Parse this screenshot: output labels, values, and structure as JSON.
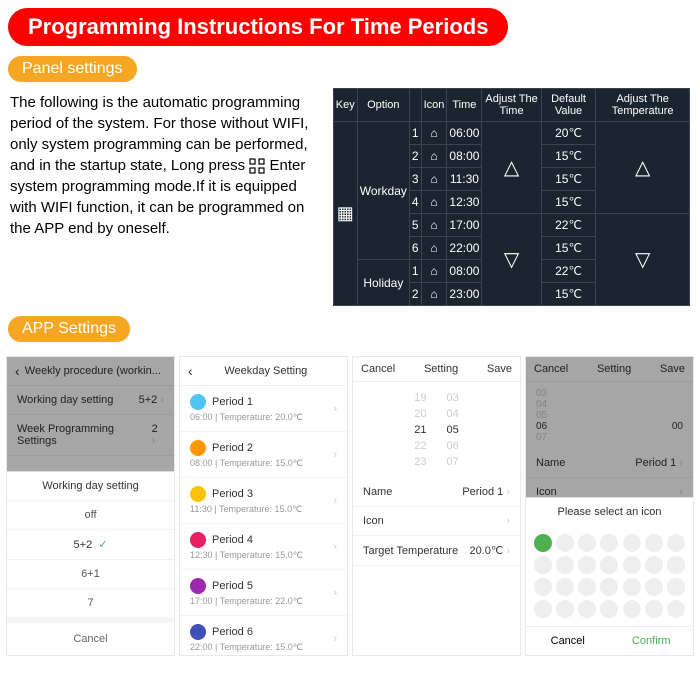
{
  "title": "Programming Instructions For Time Periods",
  "panel_label": "Panel settings",
  "app_label": "APP Settings",
  "description_before": "The following is the automatic programming period of the system. For those without WIFI, only system programming can be performed, and in the startup state, Long press ",
  "description_after": " Enter system programming mode.If it is equipped with WIFI function, it can be programmed on the APP end by oneself.",
  "table": {
    "headers": [
      "Key",
      "Option",
      "",
      "Icon",
      "Time",
      "Adjust The Time",
      "Default Value",
      "Adjust The Temperature"
    ],
    "workday_label": "Workday",
    "holiday_label": "Holiday",
    "workday": [
      {
        "n": "1",
        "time": "06:00",
        "val": "20℃"
      },
      {
        "n": "2",
        "time": "08:00",
        "val": "15℃"
      },
      {
        "n": "3",
        "time": "11:30",
        "val": "15℃"
      },
      {
        "n": "4",
        "time": "12:30",
        "val": "15℃"
      },
      {
        "n": "5",
        "time": "17:00",
        "val": "22℃"
      },
      {
        "n": "6",
        "time": "22:00",
        "val": "15℃"
      }
    ],
    "holiday": [
      {
        "n": "1",
        "time": "08:00",
        "val": "22℃"
      },
      {
        "n": "2",
        "time": "23:00",
        "val": "15℃"
      }
    ]
  },
  "phone1": {
    "title": "Weekly procedure (workin...",
    "row1": "Working day setting",
    "row1r": "5+2",
    "row2": "Week Programming Settings",
    "row2r": "2",
    "sheet_title": "Working day setting",
    "opts": [
      "off",
      "5+2",
      "6+1",
      "7"
    ],
    "selected": "5+2",
    "cancel": "Cancel"
  },
  "phone2": {
    "title": "Weekday Setting",
    "periods": [
      {
        "name": "Period 1",
        "sub": "06:00 | Temperature: 20.0℃",
        "color": "#4fc3f7"
      },
      {
        "name": "Period 2",
        "sub": "08:00 | Temperature: 15.0℃",
        "color": "#ff9800"
      },
      {
        "name": "Period 3",
        "sub": "11:30 | Temperature: 15.0℃",
        "color": "#ffc107"
      },
      {
        "name": "Period 4",
        "sub": "12:30 | Temperature: 15.0℃",
        "color": "#e91e63"
      },
      {
        "name": "Period 5",
        "sub": "17:00 | Temperature: 22.0℃",
        "color": "#9c27b0"
      },
      {
        "name": "Period 6",
        "sub": "22:00 | Temperature: 15.0℃",
        "color": "#3f51b5"
      }
    ]
  },
  "phone3": {
    "left": "Cancel",
    "title": "Setting",
    "right": "Save",
    "scroll_left": [
      "19",
      "20",
      "21",
      "22",
      "23"
    ],
    "scroll_right": [
      "03",
      "04",
      "05",
      "06",
      "07"
    ],
    "name_label": "Name",
    "name_val": "Period 1",
    "icon_label": "Icon",
    "temp_label": "Target Temperature",
    "temp_val": "20.0℃"
  },
  "phone4": {
    "left": "Cancel",
    "title": "Setting",
    "right": "Save",
    "rows": [
      {
        "l": "03",
        "r": ""
      },
      {
        "l": "04",
        "r": ""
      },
      {
        "l": "05",
        "r": ""
      },
      {
        "l": "06",
        "r": "00"
      },
      {
        "l": "07",
        "r": ""
      }
    ],
    "name_label": "Name",
    "name_val": "Period 1",
    "icon_label": "Icon",
    "sheet_title": "Please select an icon",
    "cancel": "Cancel",
    "confirm": "Confirm"
  }
}
